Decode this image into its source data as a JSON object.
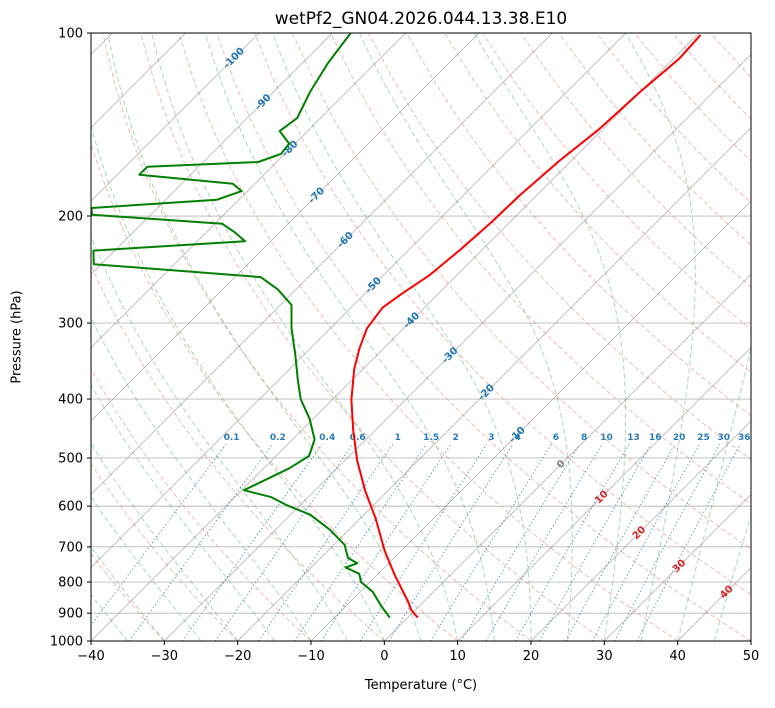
{
  "title": "wetPf2_GN04.2026.044.13.38.E10",
  "axes": {
    "x": {
      "label": "Temperature (°C)",
      "min": -40,
      "max": 50,
      "tick_values": [
        -40,
        -30,
        -20,
        -10,
        0,
        10,
        20,
        30,
        40,
        50
      ],
      "tick_labels": [
        "−40",
        "−30",
        "−20",
        "−10",
        "0",
        "10",
        "20",
        "30",
        "40",
        "50"
      ]
    },
    "y": {
      "label": "Pressure (hPa)",
      "min": 100,
      "max": 1000,
      "scale": "log",
      "tick_values": [
        100,
        200,
        300,
        400,
        500,
        600,
        700,
        800,
        900,
        1000
      ],
      "tick_labels": [
        "100",
        "200",
        "300",
        "400",
        "500",
        "600",
        "700",
        "800",
        "900",
        "1000"
      ]
    }
  },
  "chart_data": {
    "type": "line",
    "subtype": "skew-t-log-p",
    "xlim": [
      -40,
      50
    ],
    "plim": [
      100,
      1000
    ],
    "skew_deg": 45,
    "grid": true,
    "series": [
      {
        "name": "temperature",
        "color": "#ff0000",
        "points": [
          [
            101,
            -39.5
          ],
          [
            110,
            -39.2
          ],
          [
            125,
            -40.0
          ],
          [
            144,
            -40.5
          ],
          [
            162,
            -41.6
          ],
          [
            185,
            -42.3
          ],
          [
            205,
            -42.5
          ],
          [
            227,
            -43.0
          ],
          [
            250,
            -43.7
          ],
          [
            269,
            -45.0
          ],
          [
            283,
            -45.7
          ],
          [
            306,
            -45.0
          ],
          [
            330,
            -43.3
          ],
          [
            357,
            -41.2
          ],
          [
            401,
            -37.4
          ],
          [
            450,
            -33.0
          ],
          [
            505,
            -28.3
          ],
          [
            565,
            -23.2
          ],
          [
            630,
            -17.8
          ],
          [
            710,
            -12.3
          ],
          [
            780,
            -7.5
          ],
          [
            857,
            -2.4
          ],
          [
            890,
            -0.5
          ],
          [
            913,
            1.2
          ]
        ]
      },
      {
        "name": "dewpoint",
        "color": "#008000",
        "points": [
          [
            100,
            -87.5
          ],
          [
            112,
            -86.5
          ],
          [
            125,
            -85.0
          ],
          [
            138,
            -83.2
          ],
          [
            145,
            -83.8
          ],
          [
            152,
            -80.8
          ],
          [
            158,
            -80.5
          ],
          [
            163,
            -82.5
          ],
          [
            166,
            -97.0
          ],
          [
            171,
            -97.0
          ],
          [
            177,
            -83.0
          ],
          [
            182,
            -80.8
          ],
          [
            188,
            -83.0
          ],
          [
            194,
            -99.0
          ],
          [
            199,
            -98.0
          ],
          [
            206,
            -79.0
          ],
          [
            213,
            -76.0
          ],
          [
            220,
            -73.5
          ],
          [
            228,
            -92.9
          ],
          [
            240,
            -91.0
          ],
          [
            252,
            -66.5
          ],
          [
            264,
            -62.5
          ],
          [
            280,
            -58.5
          ],
          [
            306,
            -55.3
          ],
          [
            338,
            -51.2
          ],
          [
            372,
            -47.4
          ],
          [
            400,
            -44.4
          ],
          [
            431,
            -40.5
          ],
          [
            466,
            -37.0
          ],
          [
            496,
            -35.5
          ],
          [
            520,
            -36.5
          ],
          [
            545,
            -38.3
          ],
          [
            565,
            -39.7
          ],
          [
            580,
            -35.0
          ],
          [
            597,
            -32.0
          ],
          [
            620,
            -27.3
          ],
          [
            657,
            -22.5
          ],
          [
            695,
            -18.5
          ],
          [
            730,
            -16.3
          ],
          [
            745,
            -14.3
          ],
          [
            757,
            -15.3
          ],
          [
            775,
            -12.6
          ],
          [
            800,
            -11.2
          ],
          [
            830,
            -8.3
          ],
          [
            876,
            -5.2
          ],
          [
            913,
            -2.6
          ]
        ]
      }
    ],
    "background": {
      "grid_color": "#8c8c8c",
      "isotherms": {
        "color": "#8c8c8c",
        "tmin": -160,
        "tmax": 50,
        "step": 10
      },
      "dry_adiabats": {
        "color": "#e4584c",
        "theta_min": -40,
        "theta_max": 360,
        "step": 10
      },
      "moist_adiabats": {
        "color": "#2e9e4f",
        "t0_min": -40,
        "t0_max": 45,
        "step": 5
      },
      "mixing_ratio": {
        "color": "#2a7ab9",
        "values": [
          0.1,
          0.2,
          0.4,
          0.6,
          1,
          1.5,
          2,
          3,
          4,
          6,
          8,
          10,
          13,
          16,
          20,
          25,
          30,
          36
        ],
        "labels": [
          "0.1",
          "0.2",
          "0.4",
          "0.6",
          "1",
          "1.5",
          "2",
          "3",
          "4",
          "6",
          "8",
          "10",
          "13",
          "16",
          "20",
          "25",
          "30",
          "36"
        ],
        "top_pressure": 471,
        "label_pressure": 462
      },
      "isotherm_labels": {
        "neg_color": "#1f77b4",
        "zero_color": "#808080",
        "pos_color": "#d62728",
        "items": [
          {
            "t": -100,
            "p": 110,
            "label": "-100"
          },
          {
            "t": -90,
            "p": 130,
            "label": "-90"
          },
          {
            "t": -80,
            "p": 155,
            "label": "-80"
          },
          {
            "t": -70,
            "p": 185,
            "label": "-70"
          },
          {
            "t": -60,
            "p": 219,
            "label": "-60"
          },
          {
            "t": -50,
            "p": 260,
            "label": "-50"
          },
          {
            "t": -40,
            "p": 297,
            "label": "-40"
          },
          {
            "t": -30,
            "p": 339,
            "label": "-30"
          },
          {
            "t": -20,
            "p": 390,
            "label": "-20"
          },
          {
            "t": -10,
            "p": 458,
            "label": "-10"
          },
          {
            "t": 0,
            "p": 512,
            "label": "0"
          },
          {
            "t": 10,
            "p": 580,
            "label": "10"
          },
          {
            "t": 20,
            "p": 664,
            "label": "20"
          },
          {
            "t": 30,
            "p": 753,
            "label": "30"
          },
          {
            "t": 40,
            "p": 831,
            "label": "40"
          }
        ]
      }
    }
  }
}
